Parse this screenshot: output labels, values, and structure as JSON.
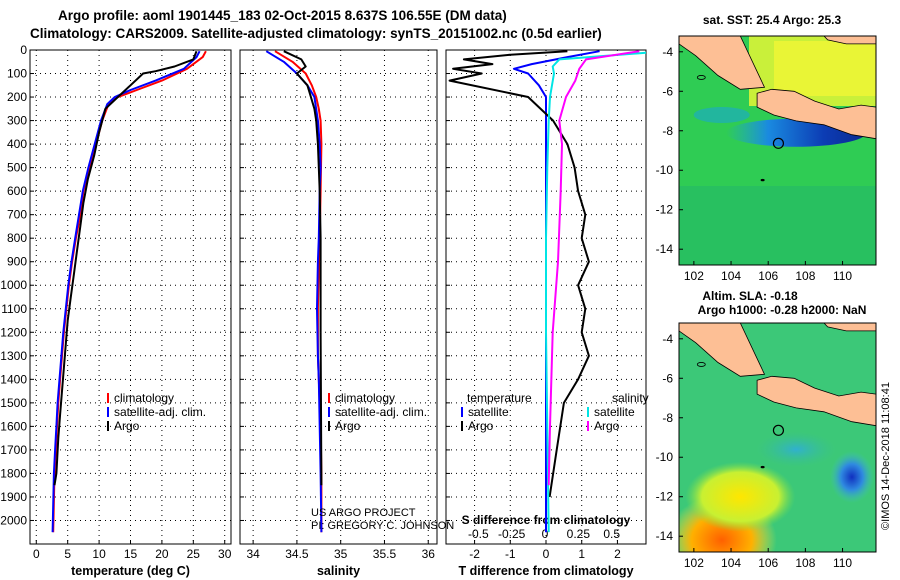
{
  "titles": {
    "line1": "Argo profile: aoml 1901445_183 02-Oct-2015 8.637S 106.55E (DM data)",
    "line2": "Climatology: CARS2009. Satellite-adjusted climatology: synTS_20151002.nc (0.5d earlier)"
  },
  "colors": {
    "climatology": "#ff0000",
    "satellite": "#0000ff",
    "argo": "#000000",
    "sat_salinity": "#00e5e5",
    "argo_salinity": "#ff00ff",
    "land": "#fdbf95"
  },
  "chart_data": [
    {
      "type": "line",
      "panel": "temperature",
      "xlabel": "temperature (deg C)",
      "ylim": [
        2100,
        0
      ],
      "xlim": [
        -1,
        31
      ],
      "x_ticks": [
        "0",
        "5",
        "10",
        "15",
        "20",
        "25",
        "30"
      ],
      "y_ticks": [
        "0",
        "100",
        "200",
        "300",
        "400",
        "500",
        "600",
        "700",
        "800",
        "900",
        "1000",
        "1100",
        "1200",
        "1300",
        "1400",
        "1500",
        "1600",
        "1700",
        "1800",
        "1900",
        "2000"
      ],
      "legend": [
        "climatology",
        "satellite-adj. clim.",
        "Argo"
      ],
      "series": [
        {
          "name": "climatology",
          "x": [
            27,
            26.5,
            24,
            20,
            16,
            13,
            11.5,
            10.5,
            9.5,
            8.5,
            7.5,
            7,
            6.3,
            5.7,
            5.2,
            4.8,
            4.4,
            4.1,
            3.8,
            3.5,
            3.3,
            3.1,
            2.9,
            2.7
          ],
          "y": [
            5,
            30,
            80,
            130,
            170,
            200,
            230,
            300,
            400,
            500,
            600,
            700,
            800,
            900,
            1000,
            1100,
            1200,
            1300,
            1400,
            1500,
            1600,
            1700,
            1800,
            2050
          ]
        },
        {
          "name": "satellite-adj. clim.",
          "x": [
            26,
            25.5,
            23.5,
            19,
            15,
            12.5,
            11.3,
            10.3,
            9.3,
            8.3,
            7.4,
            6.8,
            6.2,
            5.6,
            5.1,
            4.7,
            4.3,
            4,
            3.7,
            3.4,
            3.2,
            3,
            2.8,
            2.6
          ],
          "y": [
            5,
            30,
            80,
            130,
            170,
            200,
            230,
            300,
            400,
            500,
            600,
            700,
            800,
            900,
            1000,
            1100,
            1200,
            1300,
            1400,
            1500,
            1600,
            1700,
            1800,
            2050
          ]
        },
        {
          "name": "Argo",
          "x": [
            25.5,
            25,
            22,
            19,
            17,
            15,
            13,
            11,
            10,
            9.2,
            8.2,
            7.5,
            7,
            6.5,
            6,
            5.5,
            5,
            4.7,
            4.4,
            4.1,
            3.8,
            3.5,
            3.2,
            2.9
          ],
          "y": [
            5,
            40,
            70,
            90,
            100,
            150,
            200,
            250,
            350,
            450,
            550,
            650,
            750,
            850,
            950,
            1050,
            1150,
            1250,
            1350,
            1450,
            1550,
            1650,
            1800,
            1850
          ]
        }
      ]
    },
    {
      "type": "line",
      "panel": "salinity",
      "xlabel": "salinity",
      "ylim": [
        2100,
        0
      ],
      "xlim": [
        33.85,
        36.1
      ],
      "x_ticks": [
        "34",
        "34.5",
        "35",
        "35.5",
        "36"
      ],
      "legend": [
        "climatology",
        "satellite-adj. clim.",
        "Argo"
      ],
      "series": [
        {
          "name": "climatology",
          "x": [
            34.25,
            34.45,
            34.6,
            34.67,
            34.72,
            34.75,
            34.77,
            34.78,
            34.77,
            34.76,
            34.75,
            34.74,
            34.74,
            34.75,
            34.76,
            34.77,
            34.78,
            34.78
          ],
          "y": [
            5,
            50,
            100,
            150,
            200,
            250,
            300,
            400,
            600,
            800,
            900,
            1100,
            1300,
            1400,
            1500,
            1600,
            1800,
            2050
          ]
        },
        {
          "name": "satellite-adj. clim.",
          "x": [
            34.15,
            34.35,
            34.5,
            34.62,
            34.7,
            34.74,
            34.76,
            34.77,
            34.76,
            34.75,
            34.74,
            34.73,
            34.74,
            34.75,
            34.76,
            34.77,
            34.78
          ],
          "y": [
            5,
            50,
            100,
            150,
            200,
            300,
            400,
            500,
            600,
            800,
            900,
            1100,
            1300,
            1400,
            1600,
            1800,
            2050
          ]
        },
        {
          "name": "Argo",
          "x": [
            34.35,
            34.55,
            34.6,
            34.5,
            34.62,
            34.66,
            34.7,
            34.72,
            34.74,
            34.75,
            34.76,
            34.77,
            34.77,
            34.78
          ],
          "y": [
            5,
            40,
            70,
            100,
            150,
            200,
            250,
            300,
            400,
            500,
            600,
            800,
            1200,
            1850
          ]
        }
      ],
      "annotations": [
        "US ARGO PROJECT",
        "PI: GREGORY C. JOHNSON"
      ]
    },
    {
      "type": "line",
      "panel": "difference",
      "xlabel": "T difference from climatology",
      "x2label": "S difference from climatology",
      "ylim": [
        2100,
        0
      ],
      "xlim": [
        -2.8,
        2.8
      ],
      "x_ticks": [
        "-2",
        "-1",
        "0",
        "1",
        "2"
      ],
      "x2_ticks": [
        "-0.5",
        "-0.25",
        "0",
        "0.25",
        "0.5"
      ],
      "legend_left_title": "temperature",
      "legend_right_title": "salinity",
      "legend": [
        "satellite",
        "Argo",
        "satellite",
        "Argo"
      ],
      "series": [
        {
          "name": "satellite",
          "x": [
            1.5,
            0.6,
            -0.4,
            -0.9,
            -0.5,
            -0.2,
            0,
            0,
            0,
            0,
            0,
            0,
            0,
            0
          ],
          "y": [
            5,
            30,
            60,
            80,
            100,
            150,
            200,
            300,
            500,
            800,
            1000,
            1400,
            1800,
            2050
          ]
        },
        {
          "name": "Argo",
          "x": [
            0.6,
            -1,
            -2.3,
            -1.5,
            -2.6,
            -1.8,
            -2.7,
            -0.5,
            0.2,
            0.6,
            0.8,
            0.9,
            1.1,
            1.0,
            1.2,
            0.9,
            1.1,
            1.0,
            1.2,
            0.9,
            0.5,
            0.3,
            0.1
          ],
          "y": [
            5,
            20,
            40,
            60,
            80,
            100,
            130,
            200,
            300,
            400,
            500,
            600,
            700,
            800,
            900,
            1000,
            1100,
            1200,
            1300,
            1400,
            1500,
            1700,
            1900
          ]
        },
        {
          "name": "satellite",
          "x": [
            0.9,
            0.1,
            0.05,
            0.06,
            0.03,
            0.02,
            0.01,
            0,
            0,
            0.02
          ],
          "y": [
            5,
            40,
            70,
            100,
            200,
            300,
            500,
            800,
            1200,
            2050
          ]
        },
        {
          "name": "Argo",
          "x": [
            0.7,
            0.3,
            0.25,
            0.22,
            0.15,
            0.1,
            0.12,
            0.11,
            0.09,
            0.05,
            0.03,
            0.02
          ],
          "y": [
            5,
            40,
            80,
            130,
            200,
            300,
            400,
            600,
            900,
            1200,
            1600,
            1850
          ]
        }
      ]
    },
    {
      "type": "heatmap",
      "panel": "sst-map",
      "title": "sat. SST: 25.4 Argo: 25.3",
      "x_ticks": [
        "102",
        "104",
        "106",
        "108",
        "110"
      ],
      "y_ticks": [
        "-4",
        "-6",
        "-8",
        "-10",
        "-12",
        "-14"
      ],
      "xlim": [
        101.2,
        111.8
      ],
      "ylim": [
        -14.8,
        -3.2
      ],
      "float_position": {
        "lon": 106.55,
        "lat": -8.637
      }
    },
    {
      "type": "heatmap",
      "panel": "sla-map",
      "title_line1": "Altim. SLA: -0.18",
      "title_line2": "Argo h1000: -0.28 h2000: NaN",
      "x_ticks": [
        "102",
        "104",
        "106",
        "108",
        "110"
      ],
      "y_ticks": [
        "-4",
        "-6",
        "-8",
        "-10",
        "-12",
        "-14"
      ],
      "xlim": [
        101.2,
        111.8
      ],
      "ylim": [
        -14.8,
        -3.2
      ],
      "float_position": {
        "lon": 106.55,
        "lat": -8.637
      }
    }
  ],
  "footer": {
    "credit": "©IMOS 14-Dec-2018 11:08:41"
  }
}
